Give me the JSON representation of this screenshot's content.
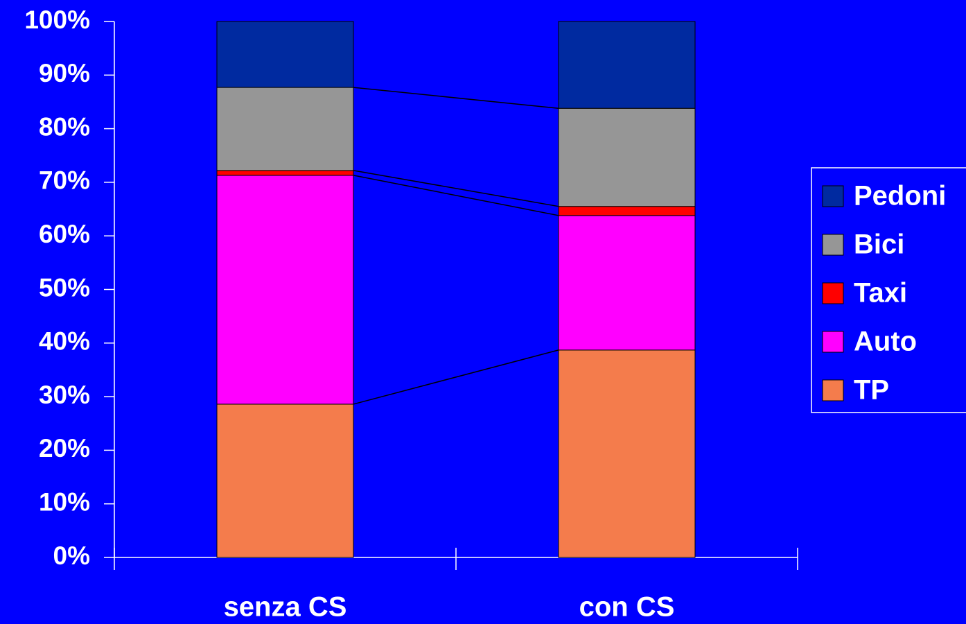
{
  "chart_data": {
    "type": "stacked-bar-100",
    "categories": [
      "senza CS",
      "con CS"
    ],
    "series": [
      {
        "name": "TP",
        "color": "#f47c4c",
        "values": [
          28.6,
          38.7
        ]
      },
      {
        "name": "Auto",
        "color": "#ff00ff",
        "values": [
          42.7,
          25.1
        ]
      },
      {
        "name": "Taxi",
        "color": "#ff0000",
        "values": [
          0.9,
          1.7
        ]
      },
      {
        "name": "Bici",
        "color": "#969696",
        "values": [
          15.5,
          18.3
        ]
      },
      {
        "name": "Pedoni",
        "color": "#002aa0",
        "values": [
          12.3,
          16.2
        ]
      }
    ],
    "ylim": [
      0,
      100
    ],
    "yticks": [
      {
        "value": 0,
        "label": "0%"
      },
      {
        "value": 10,
        "label": "10%"
      },
      {
        "value": 20,
        "label": "20%"
      },
      {
        "value": 30,
        "label": "30%"
      },
      {
        "value": 40,
        "label": "40%"
      },
      {
        "value": 50,
        "label": "50%"
      },
      {
        "value": 60,
        "label": "60%"
      },
      {
        "value": 70,
        "label": "70%"
      },
      {
        "value": 80,
        "label": "80%"
      },
      {
        "value": 90,
        "label": "90%"
      },
      {
        "value": 100,
        "label": "100%"
      }
    ],
    "series_lines": true,
    "legend": "right"
  }
}
